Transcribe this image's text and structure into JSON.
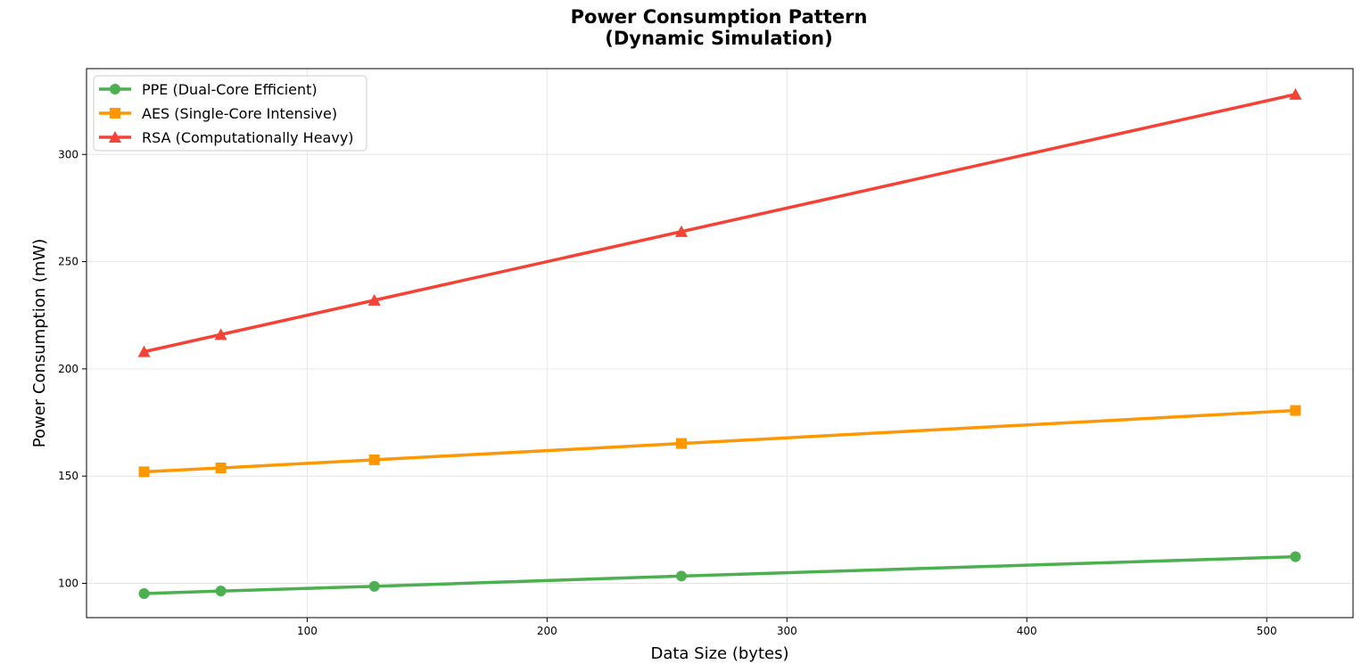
{
  "chart_data": {
    "type": "line",
    "title_lines": [
      "Power Consumption Pattern",
      "(Dynamic Simulation)"
    ],
    "xlabel": "Data Size (bytes)",
    "ylabel": "Power Consumption (mW)",
    "x": [
      32,
      64,
      128,
      256,
      512
    ],
    "xlim": [
      8,
      536
    ],
    "ylim": [
      84,
      340
    ],
    "xticks": [
      100,
      200,
      300,
      400,
      500
    ],
    "yticks": [
      100,
      150,
      200,
      250,
      300
    ],
    "grid": true,
    "legend_position": "top-left",
    "series": [
      {
        "name": "PPE (Dual-Core Efficient)",
        "color": "#4caf50",
        "marker": "circle",
        "values": [
          95.2,
          96.4,
          98.6,
          103.4,
          112.4
        ]
      },
      {
        "name": "AES (Single-Core Intensive)",
        "color": "#ff9800",
        "marker": "square",
        "values": [
          152.0,
          153.8,
          157.6,
          165.2,
          180.6
        ]
      },
      {
        "name": "RSA (Computationally Heavy)",
        "color": "#f44336",
        "marker": "triangle",
        "values": [
          208.0,
          216.0,
          232.0,
          264.0,
          328.0
        ]
      }
    ]
  }
}
